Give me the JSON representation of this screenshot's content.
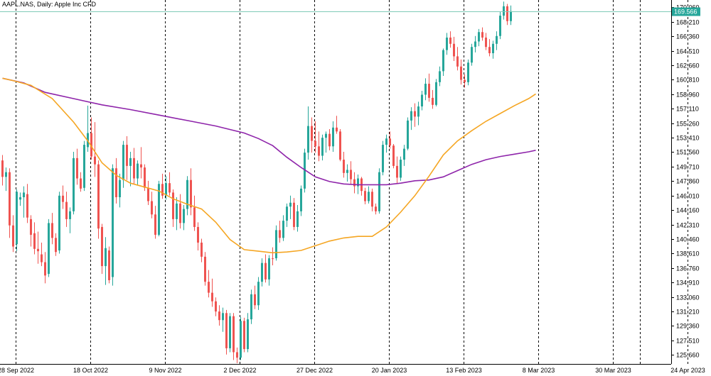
{
  "header": {
    "symbol_line": "AAPL.NAS, Daily: Apple Inc CFD"
  },
  "chart_data": {
    "type": "candlestick",
    "title": "AAPL.NAS, Daily: Apple Inc CFD",
    "timeframe": "Daily",
    "colors": {
      "bull": "#26a69a",
      "bear": "#ef5350",
      "ma_fast": "#f5a623",
      "ma_slow": "#8e24aa",
      "grid": "#000000",
      "current_price_line": "#7fcbb8",
      "current_price_tag": "#26a69a"
    },
    "y_axis": {
      "ylim": [
        124.5,
        171.0
      ],
      "ticks": [
        "170.060",
        "168.210",
        "166.360",
        "164.510",
        "162.660",
        "160.810",
        "158.960",
        "157.110",
        "155.260",
        "153.410",
        "151.560",
        "149.710",
        "147.860",
        "146.010",
        "144.160",
        "142.310",
        "140.460",
        "138.610",
        "136.760",
        "134.910",
        "133.060",
        "131.210",
        "129.360",
        "127.510",
        "125.660"
      ]
    },
    "x_axis": {
      "ticks": [
        "28 Sep 2022",
        "18 Oct 2022",
        "9 Nov 2022",
        "2 Dec 2022",
        "27 Dec 2022",
        "20 Jan 2023",
        "13 Feb 2023",
        "8 Mar 2023",
        "30 Mar 2023",
        "24 Apr 2023"
      ]
    },
    "current_price": {
      "value": 169.566,
      "label": "169.566"
    },
    "candles": [
      [
        150.5,
        151.2,
        147.3,
        148.4
      ],
      [
        148.4,
        149.6,
        146.6,
        149.0
      ],
      [
        149.0,
        149.5,
        140.6,
        142.2
      ],
      [
        142.2,
        143.5,
        138.8,
        139.5
      ],
      [
        139.8,
        146.8,
        138.9,
        146.5
      ],
      [
        145.5,
        146.4,
        144.7,
        145.8
      ],
      [
        145.8,
        147.2,
        143.2,
        146.4
      ],
      [
        146.2,
        147.5,
        142.5,
        143.2
      ],
      [
        143.0,
        143.5,
        139.5,
        141.0
      ],
      [
        141.2,
        142.6,
        138.5,
        139.2
      ],
      [
        139.2,
        141.4,
        137.3,
        138.9
      ],
      [
        138.5,
        140.0,
        137.0,
        137.5
      ],
      [
        137.5,
        138.8,
        134.8,
        135.8
      ],
      [
        136.0,
        143.0,
        135.6,
        142.5
      ],
      [
        142.5,
        143.8,
        139.8,
        140.6
      ],
      [
        140.6,
        141.2,
        138.3,
        138.8
      ],
      [
        139.0,
        146.5,
        138.6,
        146.0
      ],
      [
        146.0,
        147.3,
        144.3,
        145.2
      ],
      [
        145.2,
        146.5,
        142.0,
        143.0
      ],
      [
        143.0,
        144.5,
        141.2,
        144.0
      ],
      [
        144.0,
        151.6,
        143.6,
        150.8
      ],
      [
        150.8,
        152.0,
        147.4,
        148.2
      ],
      [
        148.2,
        149.0,
        146.5,
        146.9
      ],
      [
        147.0,
        153.0,
        146.6,
        152.5
      ],
      [
        152.2,
        157.5,
        151.6,
        154.0
      ],
      [
        154.0,
        156.0,
        150.6,
        151.0
      ],
      [
        151.0,
        155.4,
        148.4,
        150.0
      ],
      [
        150.0,
        150.5,
        140.5,
        141.8
      ],
      [
        142.0,
        142.4,
        136.0,
        137.0
      ],
      [
        137.0,
        140.7,
        134.6,
        139.3
      ],
      [
        139.0,
        139.5,
        134.8,
        135.2
      ],
      [
        135.6,
        150.0,
        134.5,
        149.5
      ],
      [
        149.5,
        150.8,
        145.0,
        145.8
      ],
      [
        145.8,
        148.8,
        144.5,
        148.0
      ],
      [
        148.0,
        153.0,
        147.0,
        152.5
      ],
      [
        152.5,
        153.6,
        148.0,
        149.8
      ],
      [
        149.8,
        151.6,
        147.2,
        150.8
      ],
      [
        150.8,
        152.1,
        147.5,
        148.2
      ],
      [
        148.2,
        150.5,
        147.4,
        150.1
      ],
      [
        150.0,
        152.2,
        148.2,
        149.6
      ],
      [
        149.6,
        150.0,
        146.6,
        147.0
      ],
      [
        147.0,
        147.9,
        144.8,
        145.3
      ],
      [
        145.3,
        146.5,
        143.1,
        143.6
      ],
      [
        143.6,
        144.7,
        140.5,
        141.0
      ],
      [
        141.0,
        147.9,
        140.8,
        147.5
      ],
      [
        147.5,
        148.8,
        145.6,
        146.0
      ],
      [
        146.0,
        148.5,
        145.5,
        147.6
      ],
      [
        147.6,
        149.0,
        146.0,
        146.4
      ],
      [
        146.4,
        146.8,
        142.0,
        143.0
      ],
      [
        143.0,
        145.8,
        141.6,
        145.0
      ],
      [
        145.0,
        146.2,
        141.8,
        142.5
      ],
      [
        142.5,
        144.8,
        141.6,
        144.3
      ],
      [
        144.3,
        148.5,
        143.5,
        148.0
      ],
      [
        148.0,
        149.5,
        143.5,
        144.5
      ],
      [
        144.5,
        146.0,
        141.5,
        142.0
      ],
      [
        142.0,
        142.6,
        139.0,
        140.0
      ],
      [
        140.0,
        140.5,
        137.5,
        138.2
      ],
      [
        138.2,
        138.8,
        134.5,
        135.0
      ],
      [
        135.0,
        136.5,
        133.0,
        133.6
      ],
      [
        133.6,
        135.4,
        131.8,
        132.5
      ],
      [
        132.5,
        133.0,
        130.6,
        131.2
      ],
      [
        131.2,
        132.0,
        129.4,
        130.1
      ],
      [
        130.1,
        131.7,
        128.6,
        131.0
      ],
      [
        131.0,
        131.4,
        125.7,
        126.5
      ],
      [
        126.5,
        131.0,
        126.0,
        130.6
      ],
      [
        130.6,
        131.0,
        125.0,
        126.0
      ],
      [
        126.0,
        126.6,
        124.6,
        125.3
      ],
      [
        125.3,
        130.5,
        125.0,
        130.0
      ],
      [
        130.0,
        130.4,
        126.0,
        126.4
      ],
      [
        126.4,
        131.0,
        126.0,
        130.2
      ],
      [
        130.2,
        134.0,
        129.6,
        133.4
      ],
      [
        133.4,
        134.5,
        131.5,
        132.0
      ],
      [
        132.0,
        135.6,
        131.4,
        135.0
      ],
      [
        135.0,
        138.0,
        134.4,
        137.4
      ],
      [
        137.4,
        138.5,
        134.9,
        135.3
      ],
      [
        135.3,
        138.4,
        134.5,
        138.0
      ],
      [
        138.0,
        139.4,
        137.1,
        137.9
      ],
      [
        138.0,
        142.2,
        137.7,
        141.6
      ],
      [
        141.6,
        142.8,
        140.0,
        140.6
      ],
      [
        140.6,
        143.5,
        140.2,
        142.8
      ],
      [
        142.8,
        145.0,
        142.0,
        144.6
      ],
      [
        144.6,
        146.0,
        143.0,
        145.1
      ],
      [
        145.1,
        145.7,
        141.6,
        142.0
      ],
      [
        142.0,
        144.8,
        141.4,
        144.0
      ],
      [
        144.0,
        147.3,
        143.4,
        146.9
      ],
      [
        146.9,
        152.0,
        146.4,
        151.5
      ],
      [
        151.5,
        157.4,
        150.6,
        154.9
      ],
      [
        154.9,
        156.0,
        151.5,
        153.0
      ],
      [
        153.0,
        155.5,
        151.5,
        152.3
      ],
      [
        152.3,
        154.2,
        150.4,
        151.1
      ],
      [
        151.1,
        153.8,
        150.5,
        153.4
      ],
      [
        153.4,
        154.2,
        151.5,
        153.9
      ],
      [
        153.9,
        154.5,
        151.8,
        152.3
      ],
      [
        152.3,
        155.5,
        151.6,
        154.7
      ],
      [
        154.7,
        156.2,
        153.9,
        154.2
      ],
      [
        154.2,
        154.5,
        150.4,
        150.6
      ],
      [
        150.6,
        151.6,
        148.3,
        148.9
      ],
      [
        148.9,
        150.0,
        147.8,
        149.3
      ],
      [
        149.3,
        150.4,
        147.4,
        148.1
      ],
      [
        148.1,
        149.0,
        146.3,
        147.2
      ],
      [
        147.2,
        148.7,
        146.2,
        148.2
      ],
      [
        148.2,
        148.4,
        146.0,
        146.6
      ],
      [
        146.6,
        147.0,
        144.9,
        145.3
      ],
      [
        145.3,
        147.2,
        145.0,
        146.5
      ],
      [
        146.5,
        146.9,
        144.0,
        144.6
      ],
      [
        144.6,
        145.0,
        143.6,
        144.0
      ],
      [
        144.0,
        149.5,
        143.7,
        149.0
      ],
      [
        149.0,
        153.0,
        148.6,
        152.5
      ],
      [
        152.5,
        153.8,
        151.5,
        153.3
      ],
      [
        153.3,
        154.2,
        152.0,
        152.4
      ],
      [
        152.4,
        152.6,
        149.5,
        149.8
      ],
      [
        149.8,
        151.0,
        147.6,
        148.3
      ],
      [
        148.3,
        151.0,
        147.9,
        150.6
      ],
      [
        150.6,
        152.5,
        149.8,
        152.0
      ],
      [
        152.0,
        156.0,
        151.8,
        155.6
      ],
      [
        155.6,
        157.3,
        154.4,
        156.8
      ],
      [
        156.8,
        157.8,
        154.8,
        156.1
      ],
      [
        156.1,
        158.0,
        155.0,
        157.4
      ],
      [
        157.4,
        159.4,
        156.9,
        158.9
      ],
      [
        158.9,
        161.0,
        158.2,
        160.3
      ],
      [
        160.3,
        161.6,
        158.0,
        158.5
      ],
      [
        158.5,
        159.5,
        157.1,
        157.6
      ],
      [
        157.6,
        160.9,
        157.4,
        160.5
      ],
      [
        160.5,
        162.5,
        160.0,
        161.9
      ],
      [
        161.9,
        164.8,
        161.3,
        164.6
      ],
      [
        164.6,
        166.8,
        164.0,
        166.2
      ],
      [
        166.2,
        167.0,
        164.9,
        165.4
      ],
      [
        165.4,
        166.3,
        163.2,
        163.8
      ],
      [
        163.8,
        165.0,
        162.0,
        162.5
      ],
      [
        162.5,
        163.4,
        160.2,
        160.8
      ],
      [
        160.8,
        161.5,
        159.8,
        160.5
      ],
      [
        160.5,
        163.4,
        160.1,
        163.0
      ],
      [
        163.0,
        165.4,
        162.6,
        165.0
      ],
      [
        165.0,
        166.4,
        164.3,
        165.7
      ],
      [
        165.7,
        167.3,
        165.1,
        166.9
      ],
      [
        166.9,
        167.5,
        165.8,
        166.2
      ],
      [
        166.2,
        166.8,
        164.6,
        165.0
      ],
      [
        165.0,
        166.0,
        163.8,
        164.2
      ],
      [
        164.2,
        165.8,
        163.5,
        165.4
      ],
      [
        165.4,
        167.0,
        164.6,
        166.4
      ],
      [
        166.4,
        169.5,
        166.0,
        169.0
      ],
      [
        169.0,
        170.8,
        168.5,
        170.2
      ],
      [
        170.2,
        170.5,
        167.8,
        168.3
      ],
      [
        168.3,
        170.3,
        167.8,
        169.566
      ]
    ],
    "ma_fast_name": "",
    "ma_fast": [
      [
        0,
        161.0
      ],
      [
        3,
        160.7
      ],
      [
        8,
        160.1
      ],
      [
        14,
        158.4
      ],
      [
        20,
        155.4
      ],
      [
        24,
        153.0
      ],
      [
        28,
        150.2
      ],
      [
        32,
        148.6
      ],
      [
        36,
        147.6
      ],
      [
        40,
        147.1
      ],
      [
        44,
        146.6
      ],
      [
        48,
        145.6
      ],
      [
        52,
        144.9
      ],
      [
        56,
        144.3
      ],
      [
        60,
        142.6
      ],
      [
        64,
        140.4
      ],
      [
        68,
        139.1
      ],
      [
        72,
        138.9
      ],
      [
        76,
        138.7
      ],
      [
        80,
        138.8
      ],
      [
        84,
        139.0
      ],
      [
        88,
        139.6
      ],
      [
        92,
        140.2
      ],
      [
        96,
        140.6
      ],
      [
        100,
        140.8
      ],
      [
        104,
        140.8
      ],
      [
        108,
        142.0
      ],
      [
        112,
        143.9
      ],
      [
        116,
        146.0
      ],
      [
        120,
        148.5
      ],
      [
        124,
        151.2
      ],
      [
        128,
        153.0
      ],
      [
        132,
        154.3
      ],
      [
        136,
        155.5
      ],
      [
        140,
        156.5
      ],
      [
        144,
        157.5
      ],
      [
        148,
        158.4
      ],
      [
        150,
        159.0
      ]
    ],
    "ma_slow_name": "",
    "ma_slow": [
      [
        0,
        161.0
      ],
      [
        6,
        160.4
      ],
      [
        12,
        159.2
      ],
      [
        20,
        158.4
      ],
      [
        28,
        157.6
      ],
      [
        36,
        157.0
      ],
      [
        44,
        156.3
      ],
      [
        52,
        155.6
      ],
      [
        60,
        154.9
      ],
      [
        68,
        154.0
      ],
      [
        72,
        153.3
      ],
      [
        76,
        152.4
      ],
      [
        80,
        150.9
      ],
      [
        84,
        149.6
      ],
      [
        88,
        148.4
      ],
      [
        92,
        147.8
      ],
      [
        96,
        147.5
      ],
      [
        100,
        147.4
      ],
      [
        104,
        147.4
      ],
      [
        108,
        147.4
      ],
      [
        112,
        147.6
      ],
      [
        116,
        147.9
      ],
      [
        120,
        148.0
      ],
      [
        124,
        148.4
      ],
      [
        128,
        149.2
      ],
      [
        132,
        150.0
      ],
      [
        136,
        150.6
      ],
      [
        140,
        151.0
      ],
      [
        144,
        151.3
      ],
      [
        148,
        151.6
      ],
      [
        150,
        151.8
      ]
    ]
  }
}
